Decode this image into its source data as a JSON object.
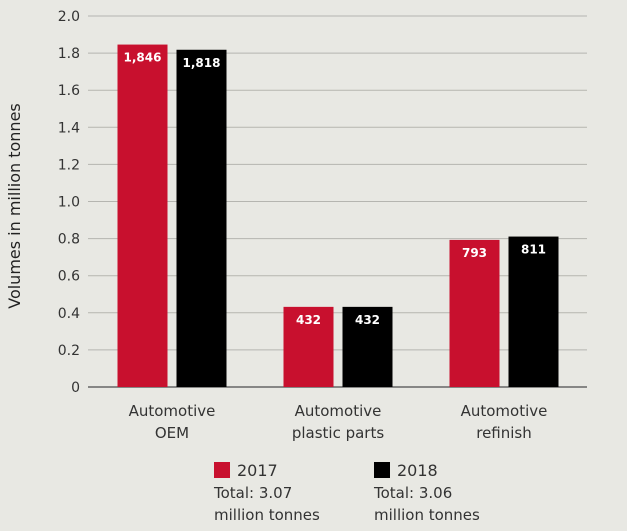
{
  "chart_data": {
    "type": "bar",
    "title": "",
    "xlabel": "",
    "ylabel": "Volumes in million tonnes",
    "ylim": [
      0,
      2.0
    ],
    "yticks": [
      "0",
      "0.2",
      "0.4",
      "0.6",
      "0.8",
      "1.0",
      "1.2",
      "1.4",
      "1.6",
      "1.8",
      "2.0"
    ],
    "grid": true,
    "categories": [
      [
        "Automotive",
        "OEM"
      ],
      [
        "Automotive",
        "plastic parts"
      ],
      [
        "Automotive",
        "refinish"
      ]
    ],
    "series": [
      {
        "name": "2017",
        "color": "#c8102e",
        "values": [
          1.846,
          0.432,
          0.793
        ],
        "labels": [
          "1,846",
          "432",
          "793"
        ]
      },
      {
        "name": "2018",
        "color": "#000000",
        "values": [
          1.818,
          0.432,
          0.811
        ],
        "labels": [
          "1,818",
          "432",
          "811"
        ]
      }
    ],
    "legend": [
      {
        "year": "2017",
        "total": "Total: 3.07",
        "unit": "million tonnes"
      },
      {
        "year": "2018",
        "total": "Total: 3.06",
        "unit": "million tonnes"
      }
    ]
  }
}
